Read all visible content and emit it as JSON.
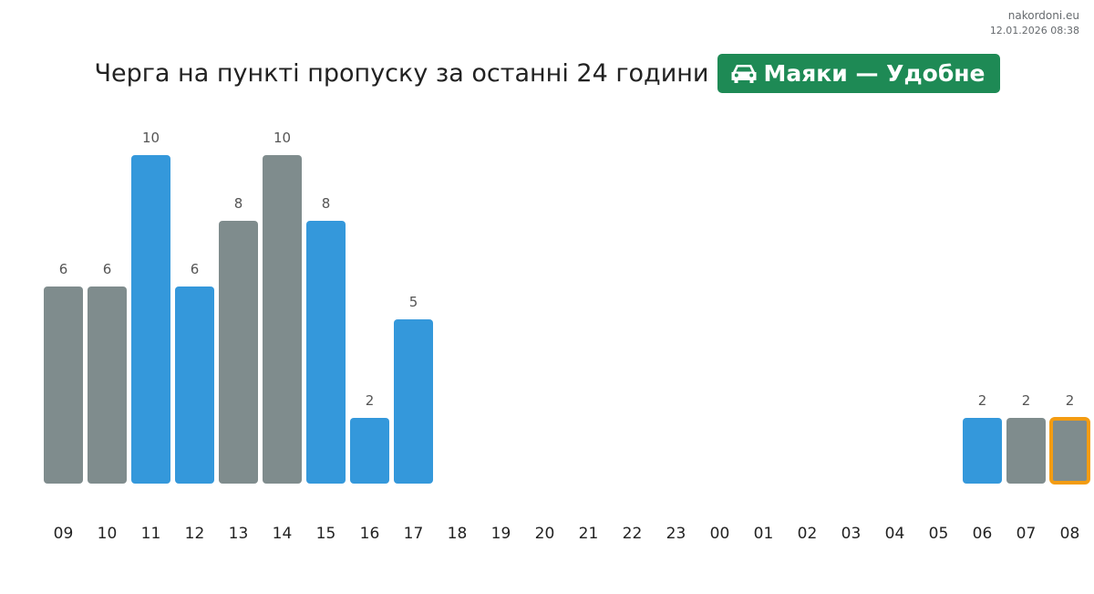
{
  "header": {
    "site": "nakordoni.eu",
    "timestamp": "12.01.2026 08:38",
    "title": "Черга на пункті пропуску за останні 24 години",
    "badge_label": "Маяки — Удобне",
    "badge_icon": "car-icon",
    "badge_color": "#1e8a55"
  },
  "colors": {
    "blue": "#3498db",
    "gray": "#7f8c8d",
    "highlight": "#f39c12"
  },
  "chart_data": {
    "type": "bar",
    "title": "Черга на пункті пропуску за останні 24 години",
    "categories": [
      "09",
      "10",
      "11",
      "12",
      "13",
      "14",
      "15",
      "16",
      "17",
      "18",
      "19",
      "20",
      "21",
      "22",
      "23",
      "00",
      "01",
      "02",
      "03",
      "04",
      "05",
      "06",
      "07",
      "08"
    ],
    "values": [
      6,
      6,
      10,
      6,
      8,
      10,
      8,
      2,
      5,
      null,
      null,
      null,
      null,
      null,
      null,
      null,
      null,
      null,
      null,
      null,
      null,
      2,
      2,
      2
    ],
    "bar_colors": [
      "gray",
      "gray",
      "blue",
      "blue",
      "gray",
      "gray",
      "blue",
      "blue",
      "blue",
      null,
      null,
      null,
      null,
      null,
      null,
      null,
      null,
      null,
      null,
      null,
      null,
      "blue",
      "gray",
      "gray"
    ],
    "highlighted_category": "08",
    "data_labels": true,
    "grid": false,
    "legend": "none",
    "xlabel": "",
    "ylabel": "",
    "ylim": [
      0,
      10
    ]
  }
}
